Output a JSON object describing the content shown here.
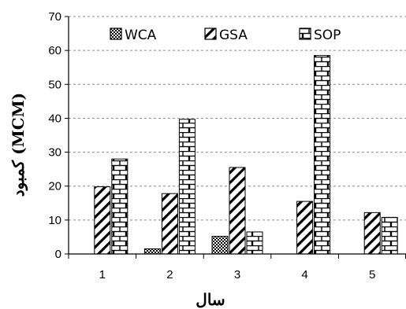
{
  "chart_data": {
    "type": "bar",
    "xlabel": "سال",
    "ylabel": "کمبود (MCM)",
    "categories": [
      "1",
      "2",
      "3",
      "4",
      "5"
    ],
    "ylim": [
      0,
      70
    ],
    "yticks": [
      0,
      10,
      20,
      30,
      40,
      50,
      60,
      70
    ],
    "grid": "horizontal-dashed",
    "legend_position": "top",
    "series": [
      {
        "name": "WCA",
        "pattern": "checker",
        "values": [
          0,
          1.5,
          5.2,
          0,
          0
        ]
      },
      {
        "name": "GSA",
        "pattern": "diagonal",
        "values": [
          19.8,
          17.8,
          25.5,
          15.5,
          12.2
        ]
      },
      {
        "name": "SOP",
        "pattern": "brick",
        "values": [
          28,
          39.7,
          6.5,
          58.5,
          10.8
        ]
      }
    ]
  }
}
